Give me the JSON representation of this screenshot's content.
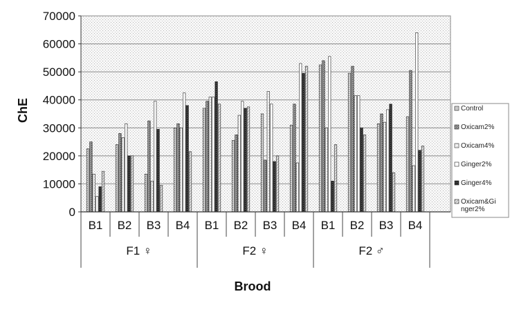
{
  "chart_data": {
    "type": "bar",
    "title": "",
    "xlabel": "Brood",
    "ylabel": "ChE",
    "ylim": [
      0,
      70000
    ],
    "yticks": [
      0,
      10000,
      20000,
      30000,
      40000,
      50000,
      60000,
      70000
    ],
    "grid": true,
    "legend_position": "right",
    "groups": [
      "F1 ♀",
      "F2 ♀",
      "F2 ♂"
    ],
    "categories": [
      "B1",
      "B2",
      "B3",
      "B4",
      "B1",
      "B2",
      "B3",
      "B4",
      "B1",
      "B2",
      "B3",
      "B4"
    ],
    "series": [
      {
        "name": "Control",
        "values": [
          22500,
          24000,
          13500,
          30000,
          37000,
          25500,
          35000,
          31000,
          52500,
          49500,
          31500,
          34000
        ]
      },
      {
        "name": "Oxicam2%",
        "values": [
          25000,
          28000,
          32500,
          31500,
          39500,
          27500,
          18500,
          38500,
          54000,
          52000,
          35000,
          50500
        ]
      },
      {
        "name": "Oxicam4%",
        "values": [
          13500,
          26500,
          11000,
          30000,
          41000,
          34500,
          43000,
          17500,
          30000,
          41500,
          32000,
          16500
        ]
      },
      {
        "name": "Ginger2%",
        "values": [
          5500,
          31500,
          39500,
          42500,
          41000,
          39500,
          38500,
          53000,
          55500,
          41500,
          36500,
          64000
        ]
      },
      {
        "name": "Ginger4%",
        "values": [
          9000,
          20000,
          29500,
          38000,
          46500,
          37000,
          18000,
          49500,
          11000,
          30000,
          38500,
          22000
        ]
      },
      {
        "name": "Oxicam&Ginger2%",
        "values": [
          14500,
          20000,
          9500,
          21500,
          38500,
          37500,
          20000,
          52000,
          24000,
          27500,
          14000,
          23500
        ]
      }
    ],
    "series_colors": [
      "#c8c8c8",
      "#8a8a8a",
      "#f4f4f4",
      "#ffffff",
      "#2e2e2e",
      "#dedede"
    ],
    "series_patterns": [
      "dots",
      "dense",
      "light",
      "plain",
      "dark",
      "hatch"
    ]
  },
  "legend": {
    "items": [
      "Control",
      "Oxicam2%",
      "Oxicam4%",
      "Ginger2%",
      "Ginger4%",
      "Oxicam&Gi nger2%"
    ]
  }
}
